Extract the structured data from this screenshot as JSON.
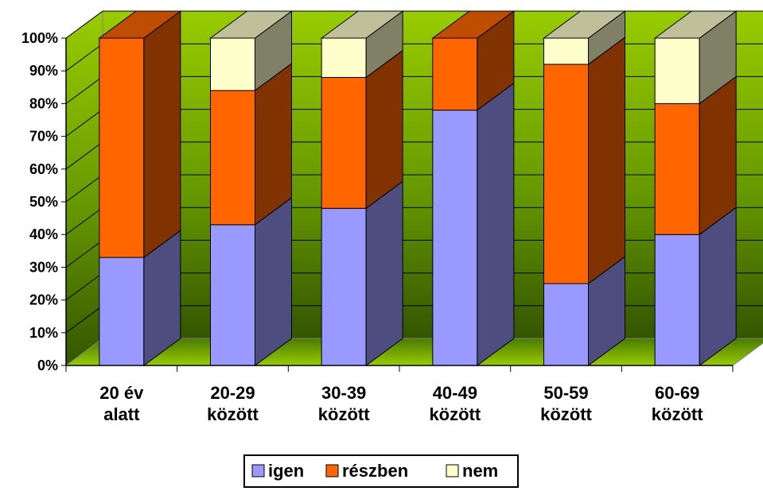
{
  "chart_data": {
    "type": "bar",
    "stacked": true,
    "three_d": true,
    "categories": [
      [
        "20 év",
        "alatt"
      ],
      [
        "20-29",
        "között"
      ],
      [
        "30-39",
        "között"
      ],
      [
        "40-49",
        "között"
      ],
      [
        "50-59",
        "között"
      ],
      [
        "60-69",
        "között"
      ]
    ],
    "series": [
      {
        "name": "igen",
        "values": [
          33,
          43,
          48,
          78,
          25,
          40
        ]
      },
      {
        "name": "részben",
        "values": [
          67,
          41,
          40,
          22,
          67,
          40
        ]
      },
      {
        "name": "nem",
        "values": [
          0,
          16,
          12,
          0,
          8,
          20
        ]
      }
    ],
    "y_ticks": [
      "0%",
      "10%",
      "20%",
      "30%",
      "40%",
      "50%",
      "60%",
      "70%",
      "80%",
      "90%",
      "100%"
    ],
    "ylim": [
      0,
      100
    ],
    "grid": true,
    "legend_position": "bottom",
    "colors": {
      "igen": "#9999ff",
      "részben": "#ff6600",
      "nem": "#ffffcc",
      "wall_top": "#99cc00",
      "wall_bottom": "#335500"
    }
  }
}
